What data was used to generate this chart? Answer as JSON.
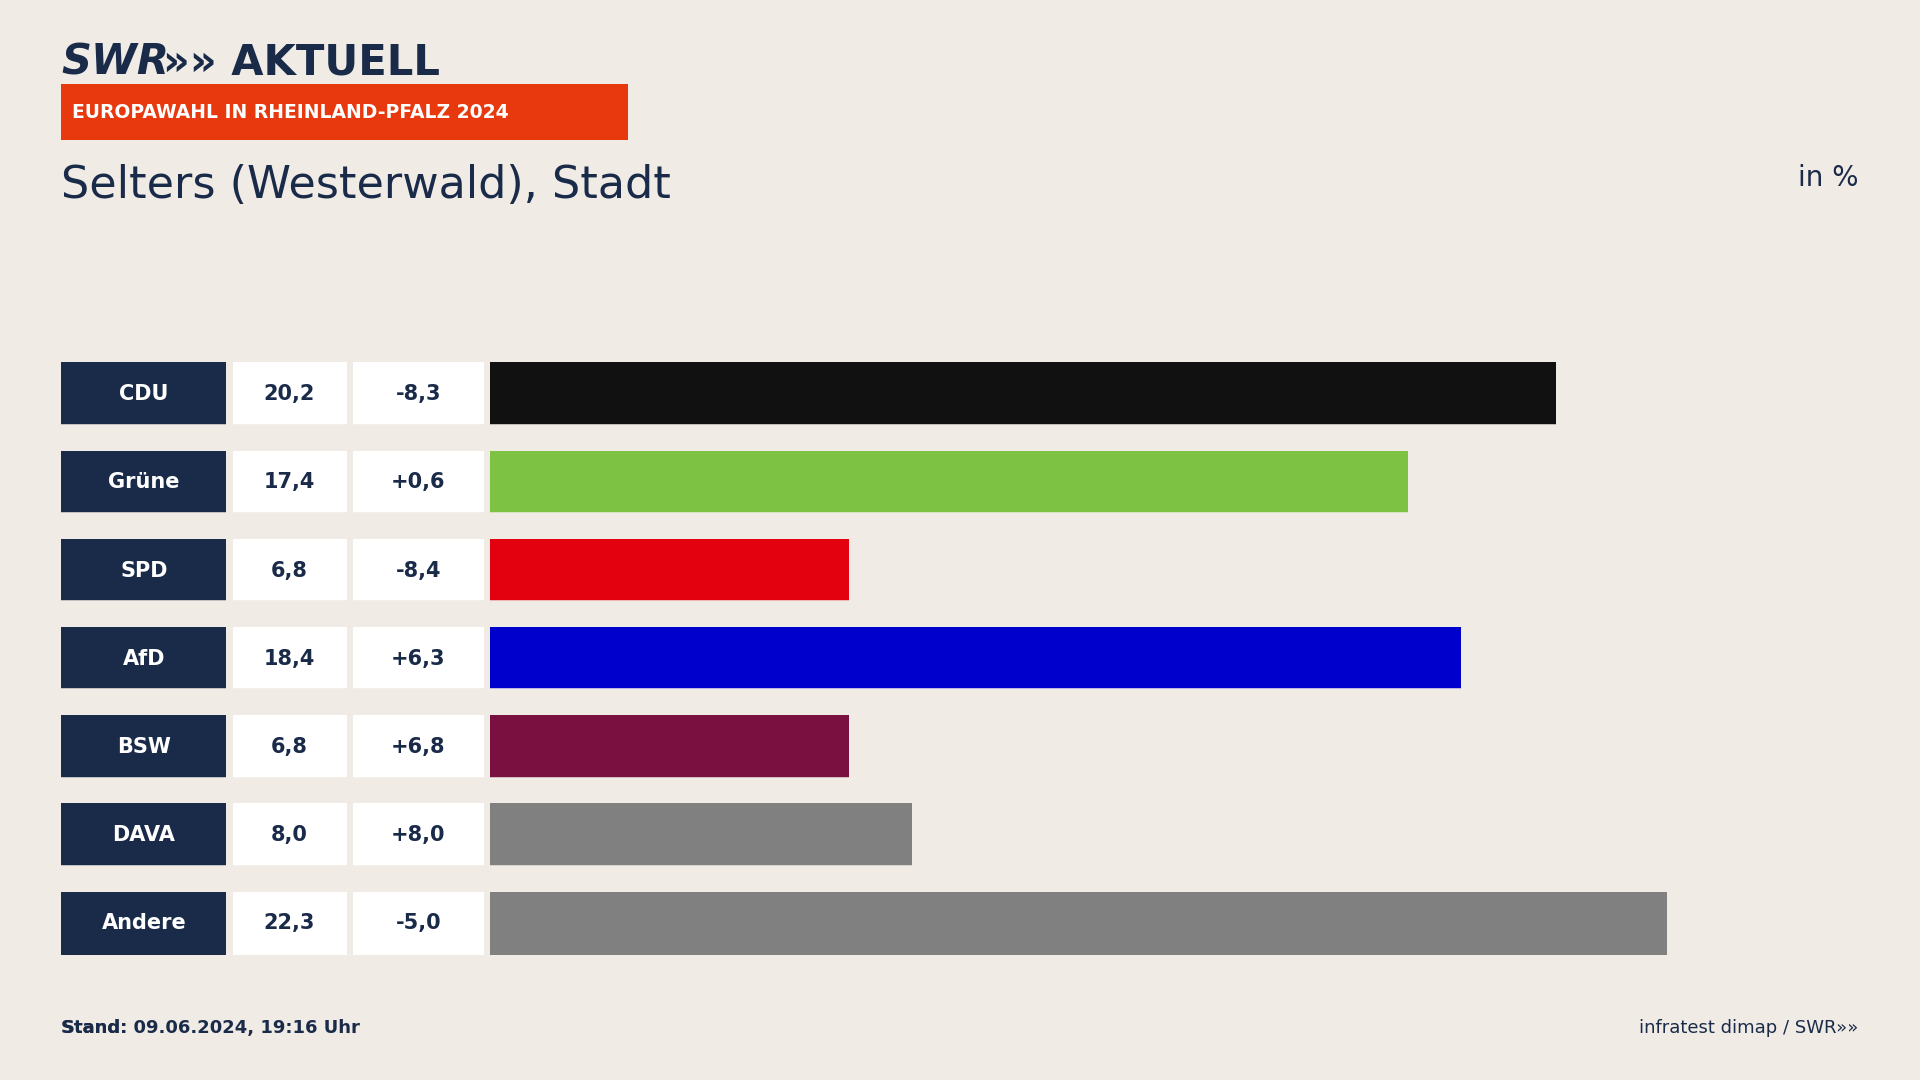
{
  "title": "Selters (Westerwald), Stadt",
  "subtitle": "EUROPAWAHL IN RHEINLAND-PFALZ 2024",
  "in_percent_label": "in %",
  "parties": [
    "CDU",
    "Grüne",
    "SPD",
    "AfD",
    "BSW",
    "DAVA",
    "Andere"
  ],
  "values": [
    20.2,
    17.4,
    6.8,
    18.4,
    6.8,
    8.0,
    22.3
  ],
  "changes": [
    "-8,3",
    "+0,6",
    "-8,4",
    "+6,3",
    "+6,8",
    "+8,0",
    "-5,0"
  ],
  "bar_colors": [
    "#111111",
    "#7dc243",
    "#e3000f",
    "#0000cc",
    "#7a1040",
    "#808080",
    "#808080"
  ],
  "label_bg_color": "#1a2b4a",
  "value_bg_color": "#ffffff",
  "background_color": "#f0ebe4",
  "header_bg_color": "#e8380d",
  "header_text_color": "#ffffff",
  "title_color": "#1a2b4a",
  "swr_color": "#1a2b4a",
  "stand_text": "Stand: 09.06.2024, 19:16 Uhr",
  "xlim_max": 26,
  "bar_height": 0.72
}
